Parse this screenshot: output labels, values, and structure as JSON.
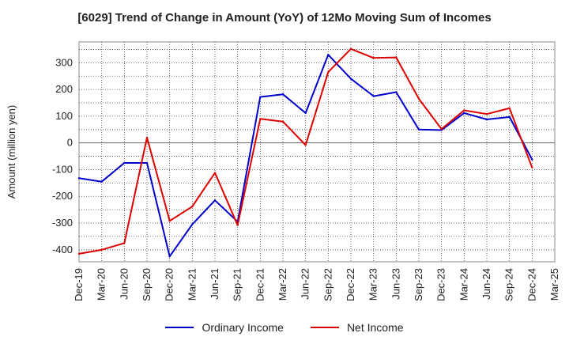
{
  "chart_data": {
    "type": "line",
    "title": "[6029]  Trend of Change in Amount (YoY) of 12Mo Moving Sum of Incomes",
    "xlabel": "",
    "ylabel": "Amount (million yen)",
    "categories": [
      "Dec-19",
      "Mar-20",
      "Jun-20",
      "Sep-20",
      "Dec-20",
      "Mar-21",
      "Jun-21",
      "Sep-21",
      "Dec-21",
      "Mar-22",
      "Jun-22",
      "Sep-22",
      "Dec-22",
      "Mar-23",
      "Jun-23",
      "Sep-23",
      "Dec-23",
      "Mar-24",
      "Jun-24",
      "Sep-24",
      "Dec-24",
      "Mar-25"
    ],
    "yticks": [
      -400,
      -300,
      -200,
      -100,
      0,
      100,
      200,
      300
    ],
    "ylim": [
      -445,
      378
    ],
    "grid": true,
    "legend_position": "bottom",
    "series": [
      {
        "name": "Ordinary Income",
        "color": "#0000cc",
        "values": [
          -132,
          -145,
          -75,
          -75,
          -425,
          -305,
          -215,
          -295,
          172,
          182,
          112,
          330,
          240,
          175,
          190,
          50,
          48,
          112,
          88,
          97,
          -62,
          null
        ]
      },
      {
        "name": "Net Income",
        "color": "#dd0000",
        "values": [
          -415,
          -400,
          -375,
          20,
          -292,
          -238,
          -112,
          -308,
          90,
          80,
          -8,
          265,
          352,
          318,
          320,
          165,
          52,
          122,
          108,
          130,
          -92,
          null
        ]
      }
    ]
  }
}
